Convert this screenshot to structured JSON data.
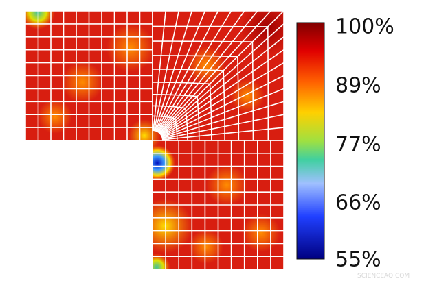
{
  "colorbar": {
    "ticks": [
      "100%",
      "89%",
      "77%",
      "66%",
      "55%"
    ]
  },
  "watermark": "SCIENCEAQ.COM"
}
